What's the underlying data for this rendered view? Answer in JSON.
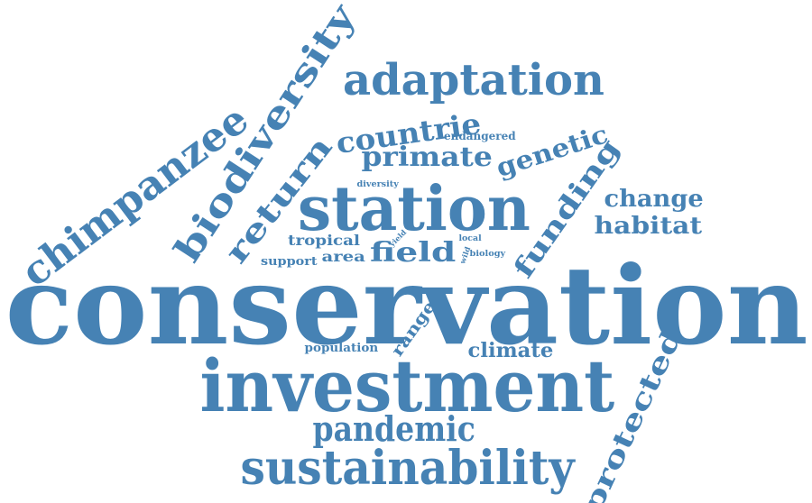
{
  "word_color": "#4682b4",
  "background": "#ffffff",
  "words": {
    "conservation": "conservation",
    "investment": "investment",
    "station": "station",
    "sustainability": "sustainability",
    "adaptation": "adaptation",
    "chimpanzee": "chimpanzee",
    "biodiversity": "biodiversity",
    "pandemic": "pandemic",
    "return": "return",
    "countrie": "countrie",
    "primate": "primate",
    "genetic": "genetic",
    "funding": "funding",
    "protected": "protected",
    "field": "field",
    "change": "change",
    "habitat": "habitat",
    "climate": "climate",
    "range": "range",
    "tropical": "tropical",
    "area": "area",
    "support": "support",
    "population": "population",
    "endangered": "endangered",
    "diversity": "diversity",
    "local": "local",
    "biology": "biology",
    "yield": "yield",
    "wild": "wild"
  }
}
